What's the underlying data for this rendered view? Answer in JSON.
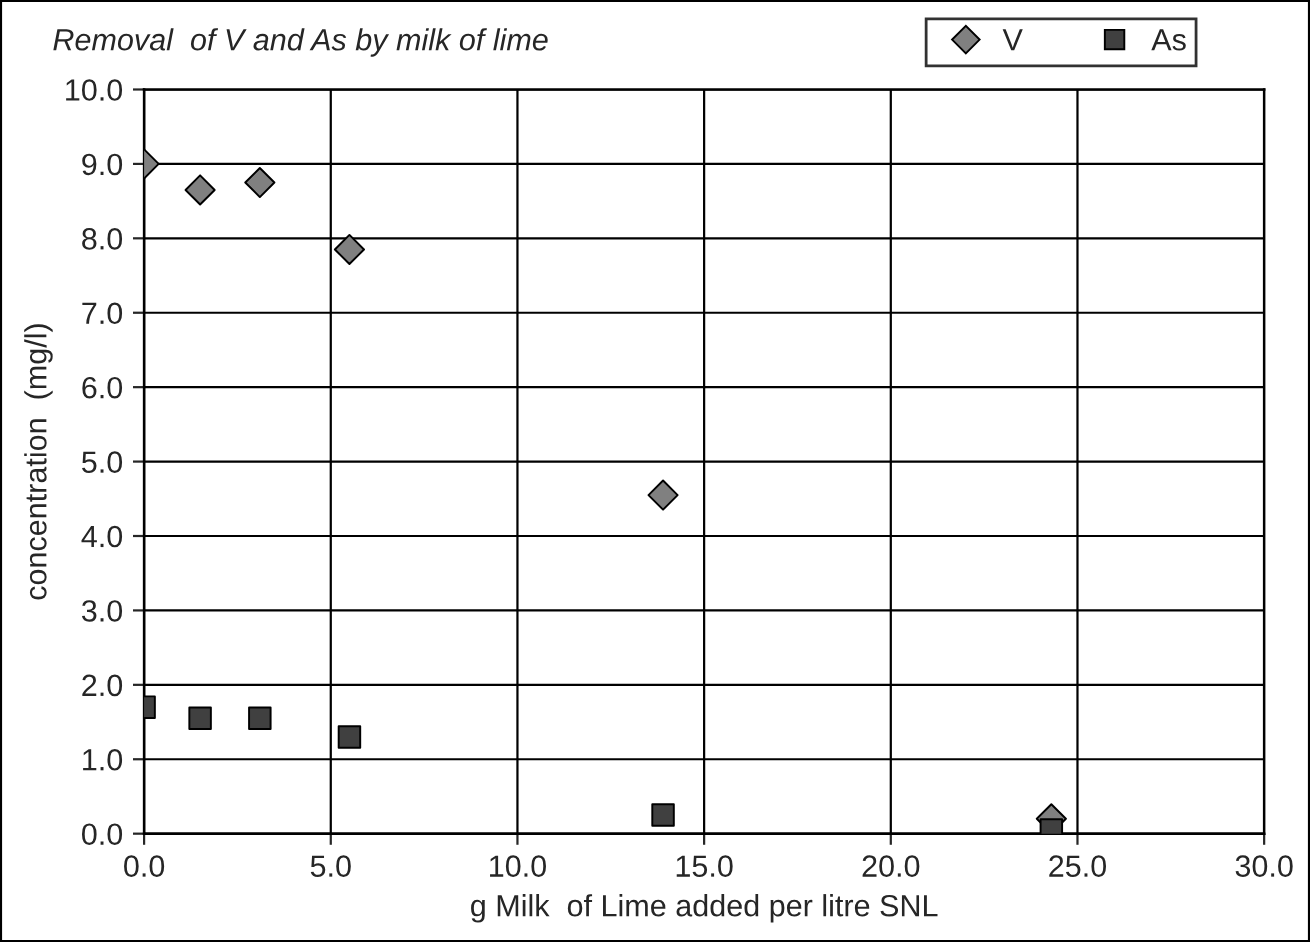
{
  "chart_data": {
    "type": "scatter",
    "title": "Removal  of V and As by milk of lime",
    "xlabel": "g Milk  of Lime added per litre SNL",
    "ylabel": "concentration  (mg/l)",
    "xlim": [
      0,
      30
    ],
    "ylim": [
      0,
      10
    ],
    "xticks": [
      {
        "value": 0,
        "label": "0.0"
      },
      {
        "value": 5,
        "label": "5.0"
      },
      {
        "value": 10,
        "label": "10.0"
      },
      {
        "value": 15,
        "label": "15.0"
      },
      {
        "value": 20,
        "label": "20.0"
      },
      {
        "value": 25,
        "label": "25.0"
      },
      {
        "value": 30,
        "label": "30.0"
      }
    ],
    "yticks": [
      {
        "value": 0,
        "label": "0.0"
      },
      {
        "value": 1,
        "label": "1.0"
      },
      {
        "value": 2,
        "label": "2.0"
      },
      {
        "value": 3,
        "label": "3.0"
      },
      {
        "value": 4,
        "label": "4.0"
      },
      {
        "value": 5,
        "label": "5.0"
      },
      {
        "value": 6,
        "label": "6.0"
      },
      {
        "value": 7,
        "label": "7.0"
      },
      {
        "value": 8,
        "label": "8.0"
      },
      {
        "value": 9,
        "label": "9.0"
      },
      {
        "value": 10,
        "label": "10.0"
      }
    ],
    "grid": true,
    "legend": "top right",
    "series": [
      {
        "name": "V",
        "color": "#808080",
        "marker": "diamond",
        "x": [
          0,
          1.5,
          3.1,
          5.5,
          13.9,
          24.3
        ],
        "values": [
          9.0,
          8.65,
          8.75,
          7.85,
          4.55,
          0.2
        ]
      },
      {
        "name": "As",
        "color": "#404040",
        "marker": "square",
        "x": [
          0,
          1.5,
          3.1,
          5.5,
          13.9,
          24.3
        ],
        "values": [
          1.7,
          1.55,
          1.55,
          1.3,
          0.25,
          0.05
        ]
      }
    ]
  }
}
